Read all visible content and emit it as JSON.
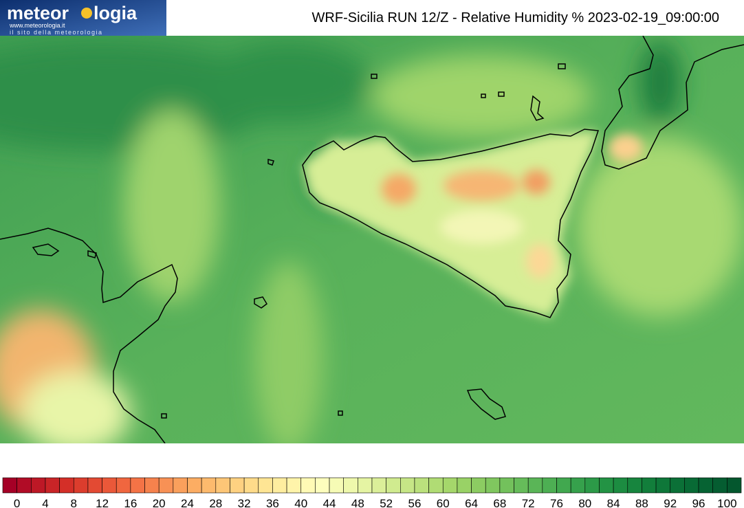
{
  "header": {
    "logo": {
      "name_start": "meteor",
      "name_end": "logia",
      "url": "www.meteorologia.it",
      "tagline": "il sito della meteorologia"
    },
    "title": "WRF-Sicilia RUN 12/Z - Relative Humidity % 2023-02-19_09:00:00"
  },
  "colorbar": {
    "ticks": [
      0,
      4,
      8,
      12,
      16,
      20,
      24,
      28,
      32,
      36,
      40,
      44,
      48,
      52,
      56,
      60,
      64,
      68,
      72,
      76,
      80,
      84,
      88,
      92,
      96,
      100
    ],
    "colors": [
      "#a50026",
      "#b10c26",
      "#bd1826",
      "#c92427",
      "#d42f28",
      "#dc3d2d",
      "#e34a33",
      "#ea5839",
      "#f0663f",
      "#f47346",
      "#f6824d",
      "#f89155",
      "#faa05c",
      "#fcad63",
      "#fdba6d",
      "#fdc677",
      "#fed181",
      "#fedb8a",
      "#fee594",
      "#feed9f",
      "#fff4aa",
      "#fffab5",
      "#fdfebd",
      "#f6fbb5",
      "#eef8ac",
      "#e5f4a3",
      "#dbef99",
      "#d0eb8f",
      "#c6e686",
      "#bbe17d",
      "#b0dc74",
      "#a5d76b",
      "#99d266",
      "#8ccc62",
      "#80c75f",
      "#73c15c",
      "#66bc5a",
      "#5ab557",
      "#4daf53",
      "#41a84f",
      "#36a14c",
      "#2c9a48",
      "#239344",
      "#1c8c41",
      "#17853e",
      "#127e3b",
      "#0e7739",
      "#0b7037",
      "#086a35",
      "#066333",
      "#055d31",
      "#04572e"
    ]
  }
}
